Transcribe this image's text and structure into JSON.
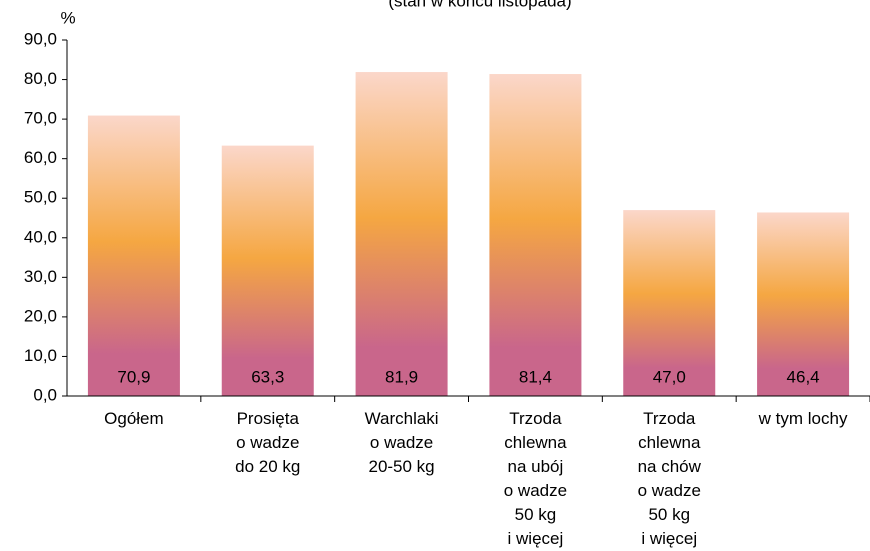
{
  "chart_data": {
    "type": "bar",
    "subtitle": "(stan w końcu listopada)",
    "y_label": "%",
    "categories": [
      "Ogółem",
      "Prosięta\no wadze\ndo 20 kg",
      "Warchlaki\no wadze\n20-50 kg",
      "Trzoda\nchlewna\nna ubój\no wadze\n50 kg\ni więcej",
      "Trzoda\nchlewna\nna chów\no wadze\n50 kg\ni więcej",
      "w tym lochy"
    ],
    "values": [
      70.9,
      63.3,
      81.9,
      81.4,
      47.0,
      46.4
    ],
    "value_labels": [
      "70,9",
      "63,3",
      "81,9",
      "81,4",
      "47,0",
      "46,4"
    ],
    "colors": [
      "#fbd7ca",
      "#f5a742",
      "#c9668b"
    ],
    "ylim": [
      0,
      90
    ],
    "yticks": [
      {
        "value": 0,
        "label": "0,0"
      },
      {
        "value": 10,
        "label": "10,0"
      },
      {
        "value": 20,
        "label": "20,0"
      },
      {
        "value": 30,
        "label": "30,0"
      },
      {
        "value": 40,
        "label": "40,0"
      },
      {
        "value": 50,
        "label": "50,0"
      },
      {
        "value": 60,
        "label": "60,0"
      },
      {
        "value": 70,
        "label": "70,0"
      },
      {
        "value": 80,
        "label": "80,0"
      },
      {
        "value": 90,
        "label": "90,0"
      }
    ]
  }
}
